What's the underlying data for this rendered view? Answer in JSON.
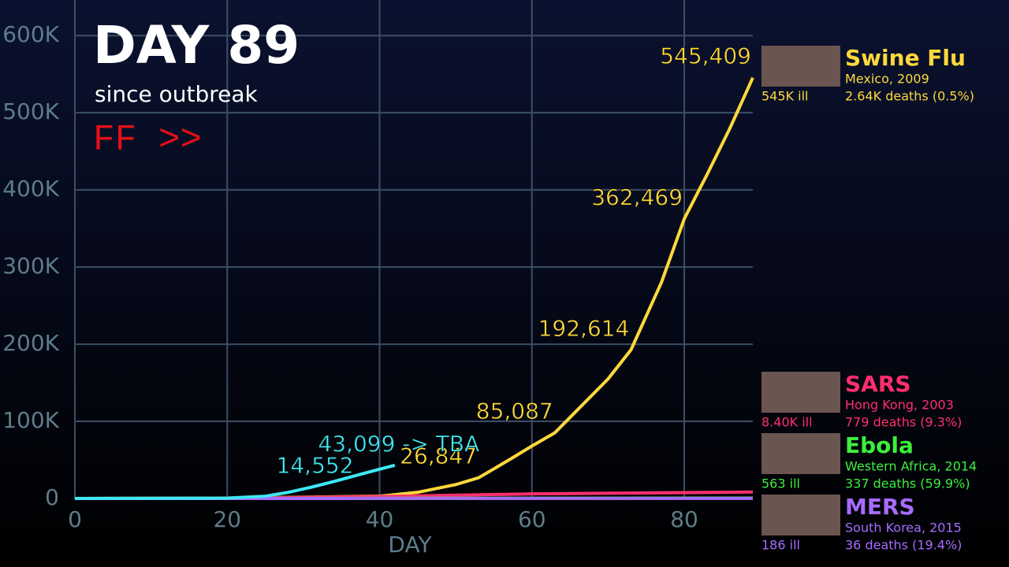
{
  "chart_data": {
    "type": "line",
    "title": "DAY 89",
    "subtitle": "since outbreak",
    "speed": "FF >>",
    "x_label": "DAY",
    "xlim": [
      0,
      89
    ],
    "xticks": [
      0,
      20,
      40,
      60,
      80
    ],
    "ylim": [
      0,
      640000
    ],
    "yticks": [
      0,
      {
        "value": 100000,
        "label": "100K"
      },
      {
        "value": 200000,
        "label": "200K"
      },
      {
        "value": 300000,
        "label": "300K"
      },
      {
        "value": 400000,
        "label": "400K"
      },
      {
        "value": 500000,
        "label": "500K"
      },
      {
        "value": 600000,
        "label": "600K"
      }
    ],
    "grid": true,
    "series": [
      {
        "name": "Swine Flu",
        "color": "#ffd93b",
        "place": "Mexico, 2009",
        "ill": "545K ill",
        "deaths": "2.64K deaths (0.5%)",
        "x": [
          0,
          20,
          40,
          45,
          50,
          53,
          57,
          60,
          63,
          66,
          70,
          73,
          77,
          80,
          83,
          86,
          89
        ],
        "values": [
          0,
          500,
          3000,
          8000,
          18000,
          26847,
          50000,
          68000,
          85087,
          115000,
          155000,
          192614,
          280000,
          362469,
          420000,
          480000,
          545409
        ],
        "value_labels": [
          null,
          null,
          null,
          null,
          null,
          "26,847",
          null,
          null,
          "85,087",
          null,
          null,
          "192,614",
          null,
          "362,469",
          null,
          null,
          "545,409"
        ]
      },
      {
        "name": "SARS",
        "color": "#ff2f6e",
        "place": "Hong Kong, 2003",
        "ill": "8.40K ill",
        "deaths": "779 deaths (9.3%)",
        "x": [
          0,
          20,
          40,
          60,
          89
        ],
        "values": [
          0,
          300,
          2500,
          6000,
          8400
        ]
      },
      {
        "name": "Ebola",
        "color": "#3cf03c",
        "place": "Western Africa, 2014",
        "ill": "563 ill",
        "deaths": "337 deaths (59.9%)",
        "x": [
          0,
          89
        ],
        "values": [
          0,
          563
        ]
      },
      {
        "name": "MERS",
        "color": "#a66bff",
        "place": "South Korea, 2015",
        "ill": "186 ill",
        "deaths": "36 deaths (19.4%)",
        "x": [
          0,
          89
        ],
        "values": [
          0,
          186
        ]
      },
      {
        "color": "#3ee8f5",
        "x": [
          0,
          20,
          25,
          28,
          31,
          34,
          37,
          40,
          42
        ],
        "values": [
          0,
          500,
          3000,
          8000,
          14552,
          22000,
          30000,
          38000,
          43099
        ],
        "value_labels": [
          null,
          null,
          null,
          null,
          "14,552",
          null,
          null,
          null,
          "43,099 -> TBA"
        ]
      }
    ]
  }
}
